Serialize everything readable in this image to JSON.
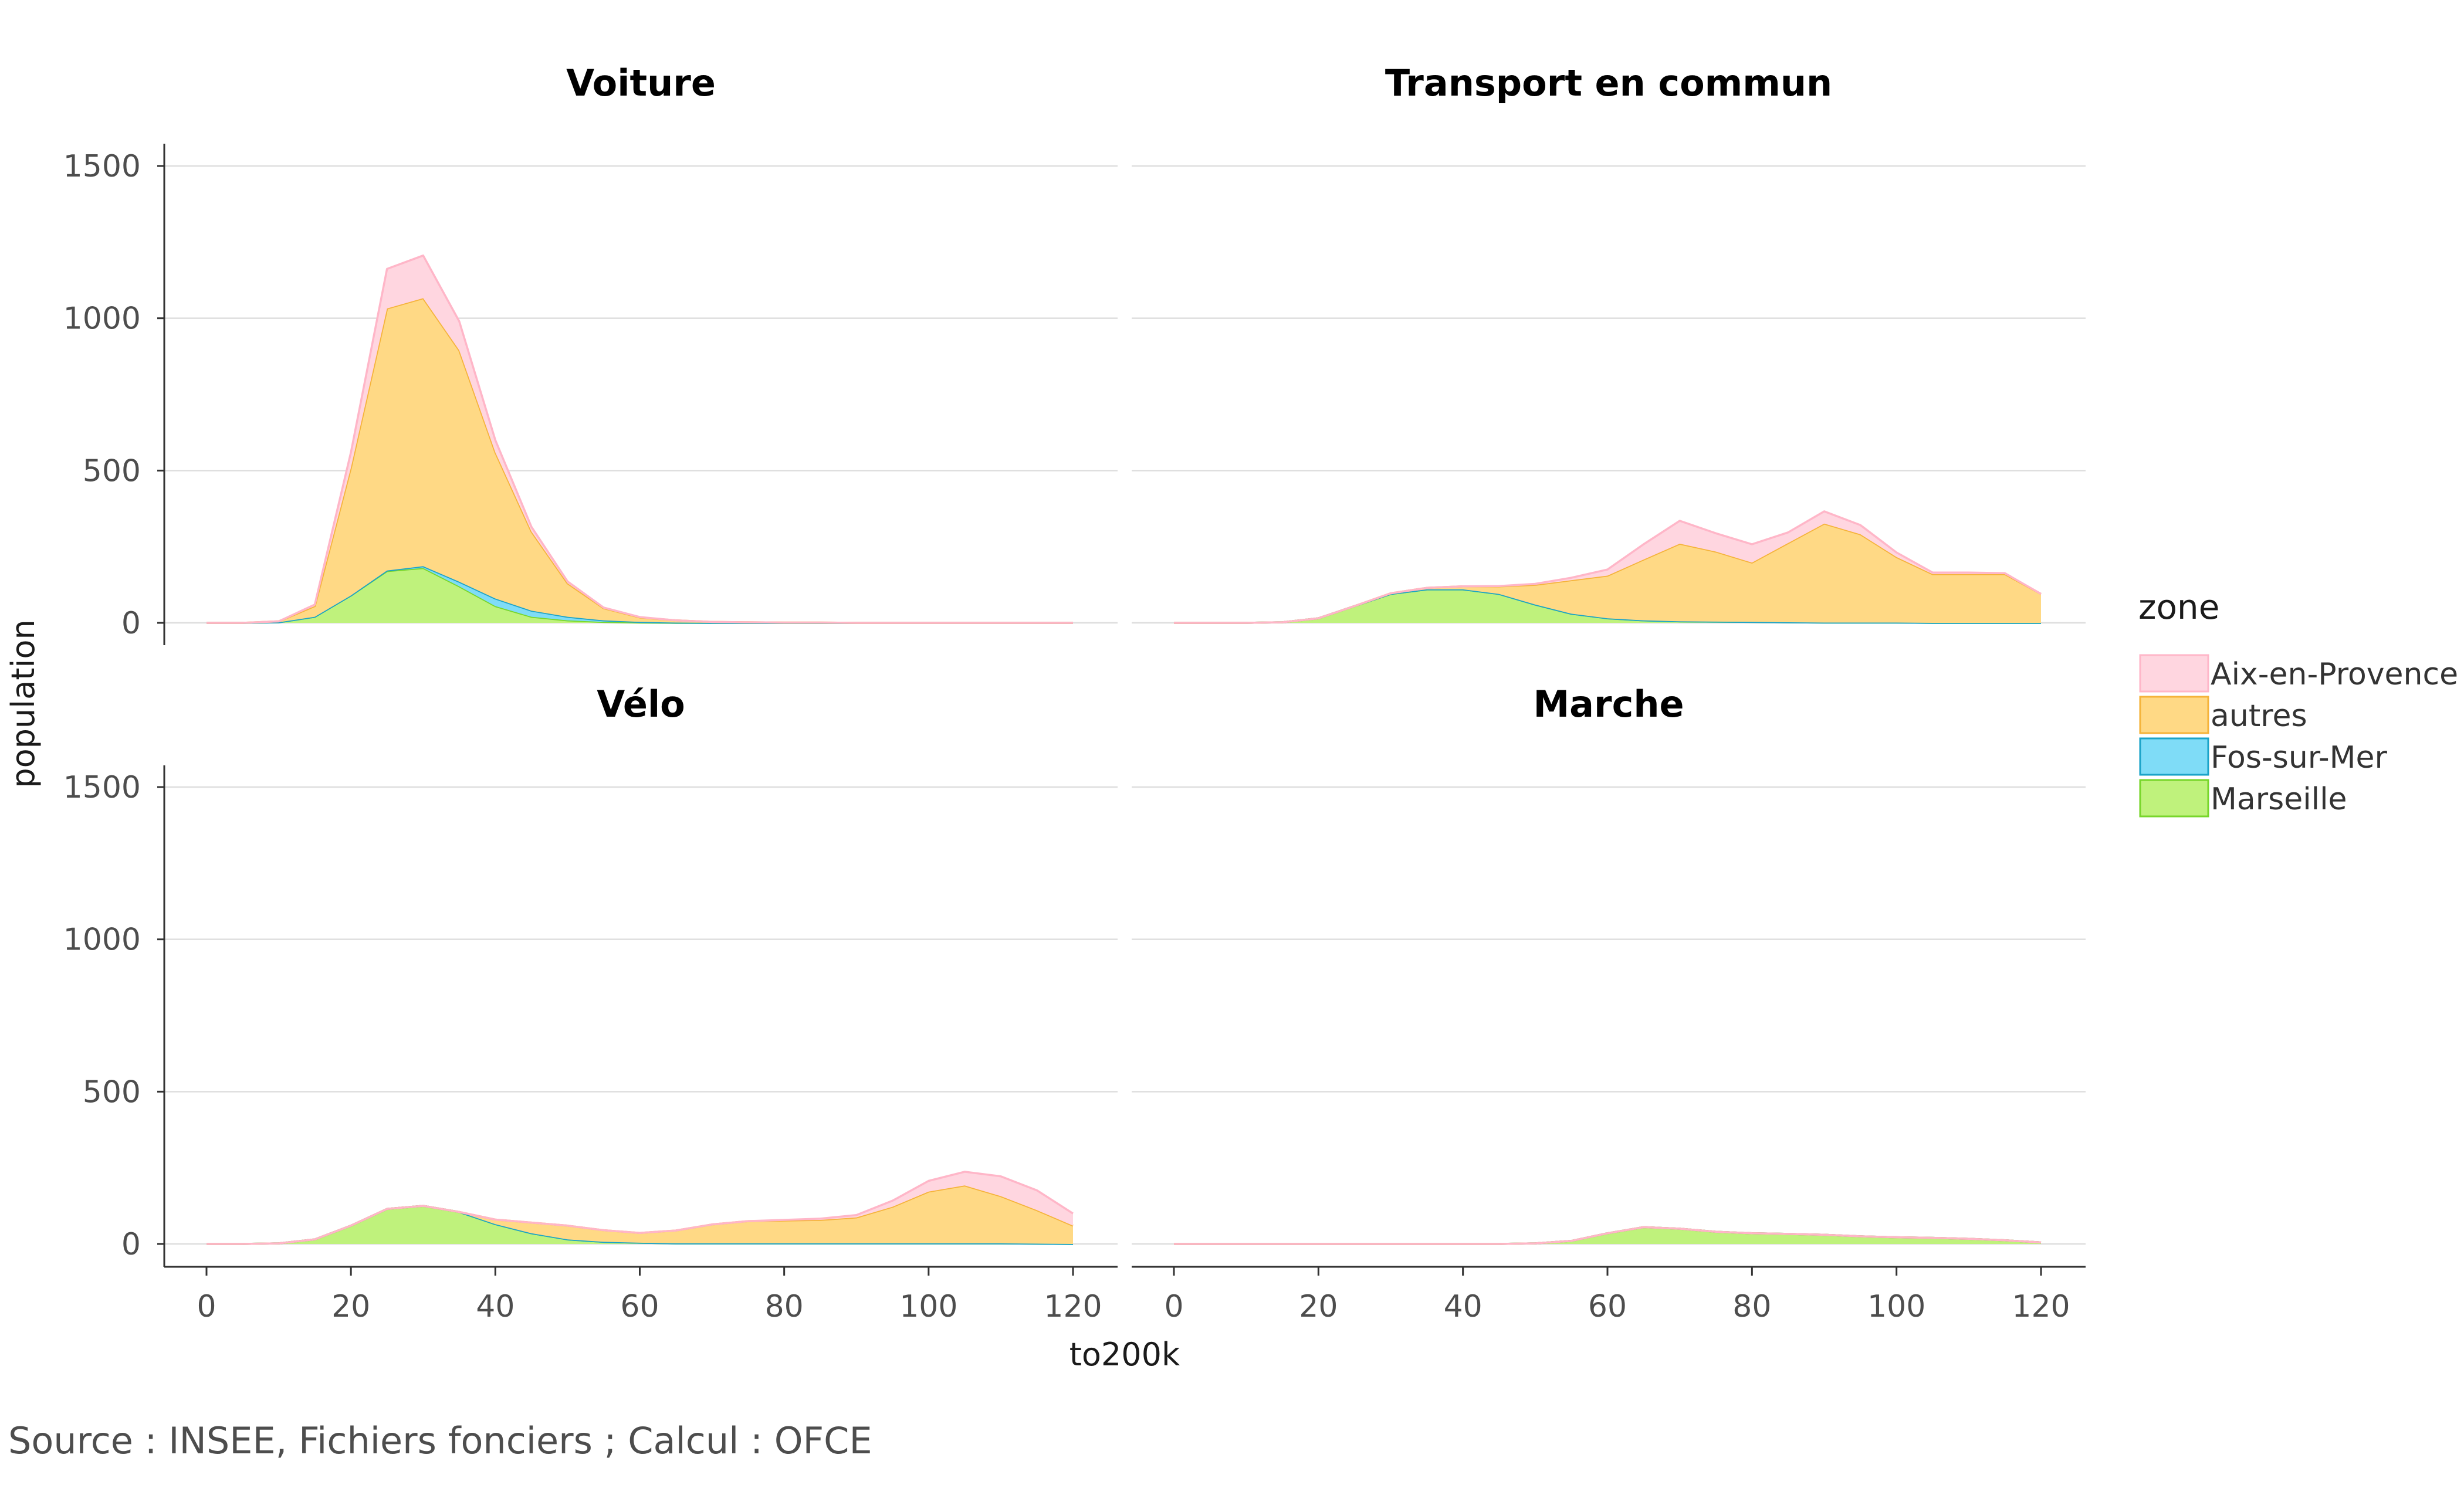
{
  "caption": "Source : INSEE, Fichiers fonciers ; Calcul : OFCE",
  "colors": {
    "Aix-en-Provence": {
      "fill": "#ffd6e0",
      "line": "#ffb6c8"
    },
    "autres": {
      "fill": "#ffd985",
      "line": "#f5b33a"
    },
    "Fos-sur-Mer": {
      "fill": "#7fdcf7",
      "line": "#1aa3c8"
    },
    "Marseille": {
      "fill": "#bff27c",
      "line": "#77d62a"
    }
  },
  "chart_data": {
    "type": "area",
    "stacked": true,
    "xlabel": "to200k",
    "ylabel": "population",
    "xlim": [
      0,
      120
    ],
    "ylim": [
      0,
      1500
    ],
    "x_ticks": [
      "0",
      "20",
      "40",
      "60",
      "80",
      "100",
      "120"
    ],
    "y_ticks": [
      "0",
      "500",
      "1000",
      "1500"
    ],
    "grid": true,
    "legend": {
      "title": "zone",
      "position": "right",
      "entries": [
        "Aix-en-Provence",
        "autres",
        "Fos-sur-Mer",
        "Marseille"
      ]
    },
    "stack_order_bottom_to_top": [
      "Marseille",
      "Fos-sur-Mer",
      "autres",
      "Aix-en-Provence"
    ],
    "x": [
      0,
      5,
      10,
      15,
      20,
      25,
      30,
      35,
      40,
      45,
      50,
      55,
      60,
      65,
      70,
      75,
      80,
      85,
      90,
      95,
      100,
      105,
      110,
      115,
      120
    ],
    "panels": [
      {
        "title": "Voiture",
        "series": [
          {
            "name": "Marseille",
            "values": [
              0,
              0,
              2,
              20,
              90,
              170,
              180,
              120,
              55,
              20,
              8,
              3,
              1,
              0,
              0,
              0,
              0,
              0,
              0,
              0,
              0,
              0,
              0,
              0,
              0
            ]
          },
          {
            "name": "Fos-sur-Mer",
            "values": [
              0,
              0,
              0,
              0,
              0,
              2,
              6,
              15,
              25,
              20,
              12,
              5,
              2,
              1,
              0,
              0,
              0,
              0,
              0,
              0,
              0,
              0,
              0,
              0,
              0
            ]
          },
          {
            "name": "autres",
            "values": [
              0,
              0,
              3,
              35,
              420,
              860,
              880,
              760,
              480,
              260,
              110,
              40,
              15,
              7,
              3,
              2,
              1,
              1,
              0,
              0,
              0,
              0,
              0,
              0,
              0
            ]
          },
          {
            "name": "Aix-en-Provence",
            "values": [
              0,
              0,
              0,
              5,
              50,
              130,
              140,
              95,
              40,
              15,
              6,
              2,
              1,
              0,
              0,
              0,
              0,
              0,
              0,
              0,
              0,
              0,
              0,
              0,
              0
            ]
          }
        ]
      },
      {
        "title": "Transport en commun",
        "series": [
          {
            "name": "Marseille",
            "values": [
              0,
              0,
              0,
              2,
              15,
              55,
              95,
              110,
              110,
              95,
              60,
              30,
              15,
              8,
              5,
              4,
              3,
              2,
              1,
              1,
              1,
              0,
              0,
              0,
              0
            ]
          },
          {
            "name": "Fos-sur-Mer",
            "values": [
              0,
              0,
              0,
              0,
              0,
              0,
              0,
              0,
              0,
              0,
              0,
              0,
              0,
              0,
              0,
              0,
              0,
              0,
              0,
              0,
              0,
              0,
              0,
              0,
              0
            ]
          },
          {
            "name": "autres",
            "values": [
              0,
              0,
              0,
              0,
              0,
              0,
              2,
              5,
              10,
              25,
              65,
              110,
              140,
              200,
              255,
              230,
              195,
              260,
              325,
              290,
              215,
              160,
              160,
              160,
              95
            ]
          },
          {
            "name": "Aix-en-Provence",
            "values": [
              0,
              0,
              0,
              0,
              0,
              0,
              0,
              0,
              0,
              1,
              3,
              8,
              20,
              50,
              75,
              60,
              60,
              35,
              40,
              30,
              15,
              5,
              5,
              3,
              0
            ]
          }
        ]
      },
      {
        "title": "Vélo",
        "series": [
          {
            "name": "Marseille",
            "values": [
              0,
              0,
              2,
              15,
              60,
              115,
              125,
              105,
              65,
              35,
              15,
              7,
              4,
              2,
              2,
              2,
              2,
              2,
              2,
              2,
              2,
              2,
              2,
              1,
              0
            ]
          },
          {
            "name": "Fos-sur-Mer",
            "values": [
              0,
              0,
              0,
              0,
              0,
              0,
              0,
              0,
              0,
              0,
              0,
              0,
              0,
              0,
              0,
              0,
              0,
              0,
              0,
              0,
              0,
              0,
              0,
              0,
              0
            ]
          },
          {
            "name": "autres",
            "values": [
              0,
              0,
              0,
              0,
              0,
              0,
              0,
              0,
              15,
              35,
              45,
              38,
              32,
              42,
              62,
              73,
              75,
              77,
              85,
              120,
              170,
              190,
              155,
              110,
              60
            ]
          },
          {
            "name": "Aix-en-Provence",
            "values": [
              0,
              0,
              0,
              0,
              0,
              0,
              0,
              0,
              0,
              0,
              0,
              0,
              0,
              0,
              0,
              0,
              2,
              4,
              8,
              20,
              35,
              45,
              65,
              65,
              40
            ]
          }
        ]
      },
      {
        "title": "Marche",
        "series": [
          {
            "name": "Marseille",
            "values": [
              0,
              0,
              0,
              0,
              0,
              0,
              0,
              0,
              0,
              0,
              2,
              10,
              35,
              55,
              50,
              40,
              35,
              33,
              30,
              25,
              22,
              20,
              17,
              12,
              5
            ]
          },
          {
            "name": "Fos-sur-Mer",
            "values": [
              0,
              0,
              0,
              0,
              0,
              0,
              0,
              0,
              0,
              0,
              0,
              0,
              0,
              0,
              0,
              0,
              0,
              0,
              0,
              0,
              0,
              0,
              0,
              0,
              0
            ]
          },
          {
            "name": "autres",
            "values": [
              0,
              0,
              0,
              0,
              0,
              0,
              0,
              0,
              0,
              0,
              0,
              0,
              0,
              0,
              0,
              0,
              0,
              0,
              0,
              0,
              0,
              0,
              0,
              0,
              0
            ]
          },
          {
            "name": "Aix-en-Provence",
            "values": [
              0,
              0,
              0,
              0,
              0,
              0,
              0,
              0,
              0,
              0,
              0,
              0,
              0,
              0,
              0,
              0,
              0,
              0,
              0,
              0,
              0,
              0,
              0,
              0,
              0
            ]
          }
        ]
      }
    ]
  }
}
